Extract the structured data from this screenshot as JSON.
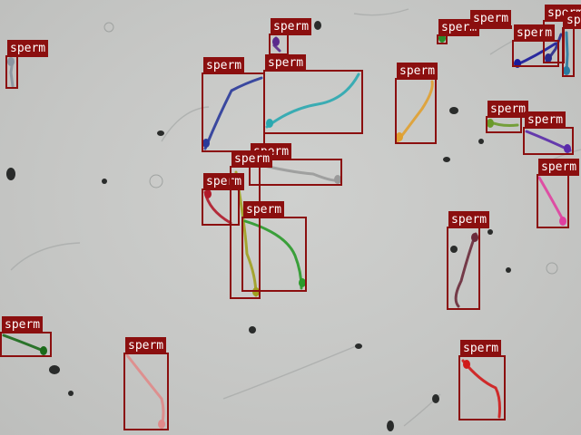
{
  "image": {
    "kind": "microscopy-sperm-detection",
    "background": "#c6c7c5"
  },
  "detections": [
    {
      "label": "sperm",
      "color": "#8b95a0"
    },
    {
      "label": "sperm",
      "color": "#5a2a8c"
    },
    {
      "label": "sperm",
      "color": "#2a3a9a"
    },
    {
      "label": "sperm",
      "color": "#2aa8b0"
    },
    {
      "label": "sperm",
      "color": "#e0a030"
    },
    {
      "label": "sperm",
      "color": "#2a8a2a"
    },
    {
      "label": "sperm",
      "color": "#1a1a9a"
    },
    {
      "label": "sperm",
      "color": "#2a2a8a"
    },
    {
      "label": "sperm",
      "color": "#2a7aa0"
    },
    {
      "label": "sperm",
      "color": "#2ab08a"
    },
    {
      "label": "sperm",
      "color": "#6a9a2a"
    },
    {
      "label": "sperm",
      "color": "#5a2aaa"
    },
    {
      "label": "sperm",
      "color": "#e040a0"
    },
    {
      "label": "sperm",
      "color": "#9a9a9a"
    },
    {
      "label": "sperm",
      "color": "#b01a2a"
    },
    {
      "label": "sperm",
      "color": "#a0a020"
    },
    {
      "label": "sperm",
      "color": "#2a9a2a"
    },
    {
      "label": "sperm",
      "color": "#6a2a3a"
    },
    {
      "label": "sperm",
      "color": "#1a6a1a"
    },
    {
      "label": "sperm",
      "color": "#e08a8a"
    },
    {
      "label": "sperm",
      "color": "#d01a1a"
    }
  ]
}
